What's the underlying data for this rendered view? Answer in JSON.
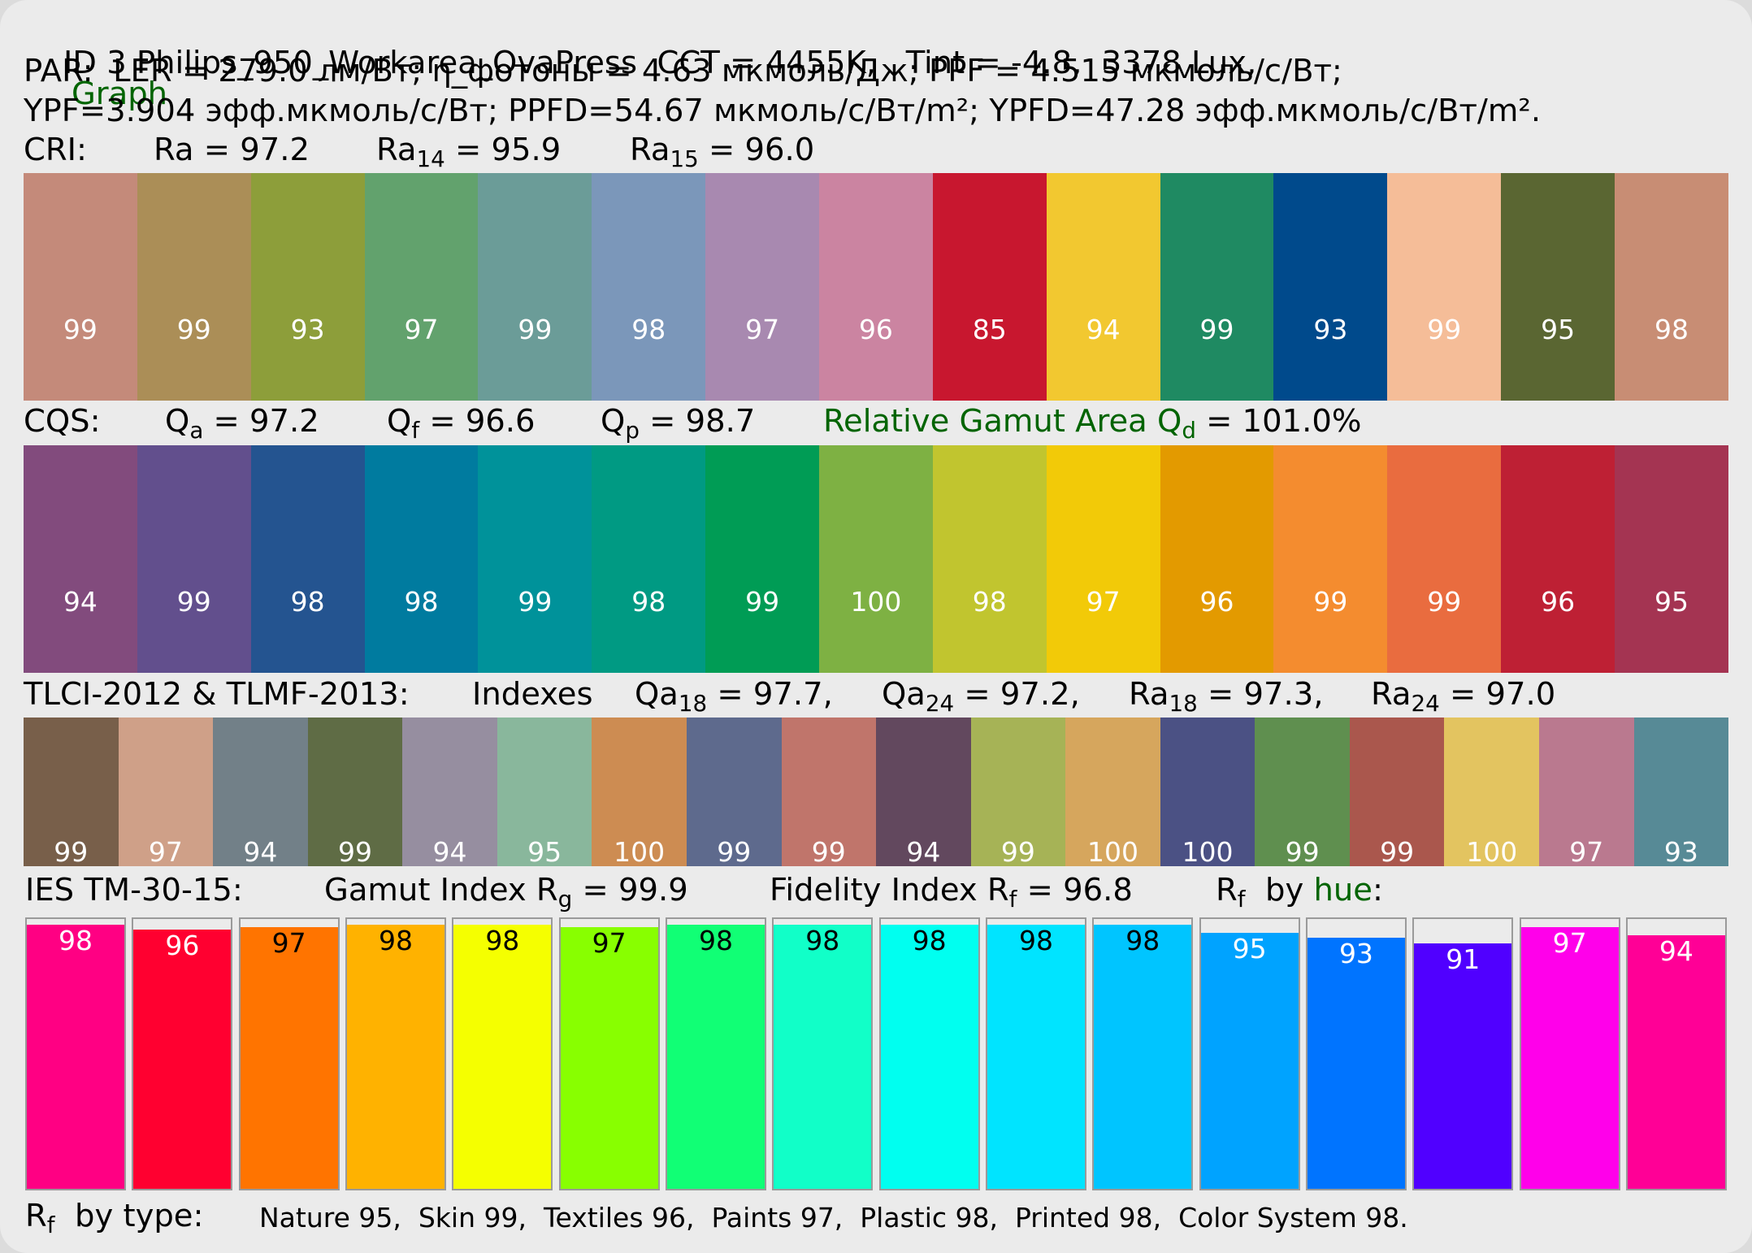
{
  "header": {
    "id_line": "ID 3 Philips_950_Workarea_OvaPress  CCT = 4455K,   Tint = -4.8,  3378 Lux,",
    "graph_link": "Graph",
    "par_line": "PAR:  LER = 279.0 лм/Вт; η_фотоны = 4.63 мкмоль/Дж; PPF = 4.515 мкмоль/с/Вт;",
    "ypf_line": "YPF=3.904 эфф.мкмоль/с/Вт; PPFD=54.67 мкмоль/с/Вт/m²; YPFD=47.28 эфф.мкмоль/с/Вт/m²."
  },
  "cri": {
    "label": "CRI:",
    "ra": "Ra = 97.2",
    "ra14_base": "Ra",
    "ra14_sub": "14",
    "ra14_rest": " = 95.9",
    "ra15_base": "Ra",
    "ra15_sub": "15",
    "ra15_rest": " = 96.0"
  },
  "cqs": {
    "label": "CQS:",
    "qa_base": "Q",
    "qa_sub": "a",
    "qa_rest": " = 97.2",
    "qf_base": "Q",
    "qf_sub": "f",
    "qf_rest": " = 96.6",
    "qp_base": "Q",
    "qp_sub": "p",
    "qp_rest": " = 98.7",
    "gamut_text": "Relative Gamut Area Q",
    "gamut_sub": "d",
    "gamut_value": " = 101.0%"
  },
  "tlci": {
    "label": "TLCI-2012 & TLMF-2013:",
    "indexes": "Indexes",
    "qa18_base": "Qa",
    "qa18_sub": "18",
    "qa18_rest": " = 97.7,",
    "qa24_base": "Qa",
    "qa24_sub": "24",
    "qa24_rest": " = 97.2,",
    "ra18_base": "Ra",
    "ra18_sub": "18",
    "ra18_rest": " = 97.3,",
    "ra24_base": "Ra",
    "ra24_sub": "24",
    "ra24_rest": " = 97.0"
  },
  "tm30": {
    "label": "IES TM-30-15:",
    "gamut_text": "Gamut Index R",
    "gamut_sub": "g",
    "gamut_rest": " = 99.9",
    "fid_text": "Fidelity Index R",
    "fid_sub": "f",
    "fid_rest": " = 96.8",
    "rf_base": "R",
    "rf_sub": "f",
    "rf_by": "  by ",
    "hue_link": "hue",
    "hue_colon": ":"
  },
  "footer": {
    "rf_base": "R",
    "rf_sub": "f",
    "by_type": "  by type:",
    "types": "Nature 95,  Skin 99,  Textiles 96,  Paints 97,  Plastic 98,  Printed 98,  Color System 98."
  },
  "chart_data": [
    {
      "type": "heatmap",
      "name": "CRI samples",
      "values": [
        99,
        99,
        93,
        97,
        99,
        98,
        97,
        96,
        85,
        94,
        99,
        93,
        99,
        95,
        98
      ],
      "colors": [
        "#c48a7a",
        "#ab8e57",
        "#8d9e3a",
        "#62a26d",
        "#6b9c98",
        "#7b97ba",
        "#a889b0",
        "#cb84a1",
        "#c8172f",
        "#f2c830",
        "#1f8a62",
        "#004a8c",
        "#f5bd98",
        "#5a6632",
        "#c88d74"
      ],
      "label_colors": [
        "#ffffff",
        "#ffffff",
        "#ffffff",
        "#ffffff",
        "#ffffff",
        "#ffffff",
        "#ffffff",
        "#ffffff",
        "#ffffff",
        "#ffffff",
        "#ffffff",
        "#ffffff",
        "#ffffff",
        "#ffffff",
        "#ffffff"
      ]
    },
    {
      "type": "heatmap",
      "name": "CQS samples",
      "values": [
        94,
        99,
        98,
        98,
        99,
        98,
        99,
        100,
        98,
        97,
        96,
        99,
        99,
        96,
        95
      ],
      "colors": [
        "#824b7d",
        "#624f8d",
        "#245490",
        "#007b9f",
        "#00929a",
        "#009a83",
        "#009c55",
        "#7eb143",
        "#c1c52f",
        "#f2ca08",
        "#e39a00",
        "#f48c2f",
        "#e96c3f",
        "#be2034",
        "#a43452"
      ],
      "label_colors": [
        "#ffffff",
        "#ffffff",
        "#ffffff",
        "#ffffff",
        "#ffffff",
        "#ffffff",
        "#ffffff",
        "#ffffff",
        "#ffffff",
        "#ffffff",
        "#ffffff",
        "#ffffff",
        "#ffffff",
        "#ffffff",
        "#ffffff"
      ]
    },
    {
      "type": "heatmap",
      "name": "TLCI samples",
      "values": [
        99,
        97,
        94,
        99,
        94,
        95,
        100,
        99,
        99,
        94,
        99,
        100,
        100,
        99,
        99,
        100,
        97,
        93
      ],
      "colors": [
        "#785f4a",
        "#cfa088",
        "#728088",
        "#5f6c45",
        "#968ea0",
        "#89b79c",
        "#cd8c52",
        "#5e6a8d",
        "#c0756b",
        "#62485e",
        "#a6b356",
        "#d6a65d",
        "#4b5184",
        "#5f8f4f",
        "#aa574d",
        "#e3c460",
        "#ba798f",
        "#578a96"
      ],
      "label_colors": [
        "#ffffff",
        "#ffffff",
        "#ffffff",
        "#ffffff",
        "#ffffff",
        "#ffffff",
        "#ffffff",
        "#ffffff",
        "#ffffff",
        "#ffffff",
        "#ffffff",
        "#ffffff",
        "#ffffff",
        "#ffffff",
        "#ffffff",
        "#ffffff",
        "#ffffff",
        "#ffffff"
      ]
    },
    {
      "type": "bar",
      "name": "Rf by hue",
      "values": [
        98,
        96,
        97,
        98,
        98,
        97,
        98,
        98,
        98,
        98,
        98,
        95,
        93,
        91,
        97,
        94
      ],
      "colors": [
        "#ff0083",
        "#ff0030",
        "#ff7400",
        "#ffb200",
        "#f5ff00",
        "#88ff00",
        "#11ff75",
        "#11ffc8",
        "#00fff0",
        "#00e4ff",
        "#00c5ff",
        "#00a3ff",
        "#0074ff",
        "#5000ff",
        "#ff00ea",
        "#ff0096"
      ],
      "label_colors": [
        "#ffffff",
        "#ffffff",
        "#000000",
        "#000000",
        "#000000",
        "#000000",
        "#000000",
        "#000000",
        "#000000",
        "#000000",
        "#000000",
        "#ffffff",
        "#ffffff",
        "#ffffff",
        "#ffffff",
        "#ffffff"
      ],
      "ylim": [
        0,
        100
      ]
    }
  ]
}
